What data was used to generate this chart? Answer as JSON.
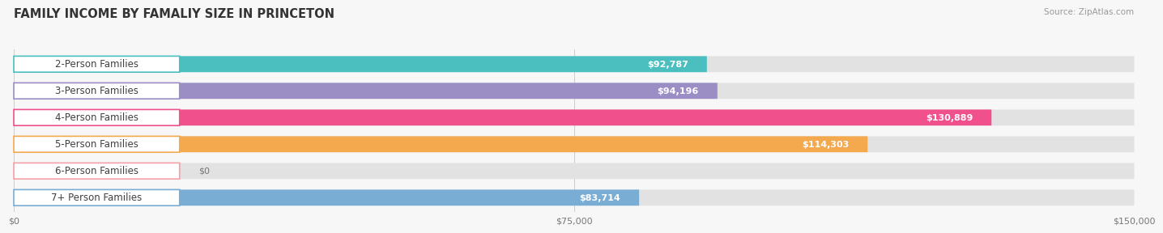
{
  "title": "FAMILY INCOME BY FAMALIY SIZE IN PRINCETON",
  "source": "Source: ZipAtlas.com",
  "categories": [
    "2-Person Families",
    "3-Person Families",
    "4-Person Families",
    "5-Person Families",
    "6-Person Families",
    "7+ Person Families"
  ],
  "values": [
    92787,
    94196,
    130889,
    114303,
    0,
    83714
  ],
  "bar_colors": [
    "#4bbfbf",
    "#9b8ec4",
    "#f0508c",
    "#f5a94e",
    "#f4a0a8",
    "#7aadd4"
  ],
  "max_value": 150000,
  "xticks": [
    0,
    75000,
    150000
  ],
  "xtick_labels": [
    "$0",
    "$75,000",
    "$150,000"
  ],
  "background_color": "#f7f7f7",
  "bar_bg_color": "#e2e2e2",
  "title_fontsize": 10.5,
  "source_fontsize": 7.5,
  "label_fontsize": 8.5,
  "value_fontsize": 8
}
